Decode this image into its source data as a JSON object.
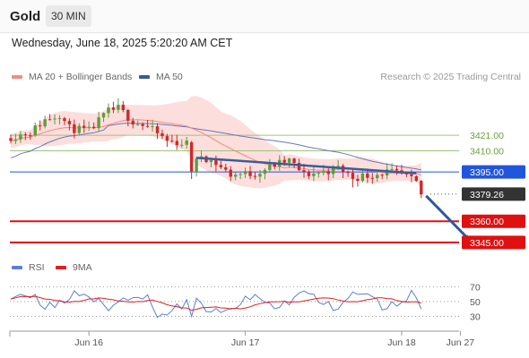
{
  "header": {
    "asset": "Gold",
    "timeframe": "30 MIN"
  },
  "timestamp": "Wednesday, June 18, 2025 5:20:20 AM CET",
  "legend": {
    "main": [
      {
        "label": "MA 20 + Bollinger Bands",
        "color": "#f28b82"
      },
      {
        "label": "MA 50",
        "color": "#3a5a98"
      }
    ],
    "rsi": [
      {
        "label": "RSI",
        "color": "#5b7fd6"
      },
      {
        "label": "9MA",
        "color": "#e02020"
      }
    ]
  },
  "copyright": "Research © 2025 Trading Central",
  "colors": {
    "up": "#5f9c3a",
    "down": "#cc2a2a",
    "bb_fill": "#fbd8d6",
    "ma20": "#f28b82",
    "ma50": "#6a78b8",
    "support": "#e01010",
    "resistance_blue": "#2255dd",
    "trendline": "#3d5b9c",
    "green_level": "#9cc57c",
    "arrow": "#2c5aa0"
  },
  "chart_data": {
    "type": "candlestick",
    "price_axis": {
      "min": 3336,
      "max": 3456
    },
    "levels": [
      {
        "value": 3421.0,
        "label": "3421.00",
        "style": "green-line",
        "tag": "plain"
      },
      {
        "value": 3410.0,
        "label": "3410.00",
        "style": "green-line",
        "tag": "plain"
      },
      {
        "value": 3395.0,
        "label": "3395.00",
        "style": "blue-line",
        "tag": "blue"
      },
      {
        "value": 3379.26,
        "label": "3379.26",
        "style": "dotted",
        "tag": "dark"
      },
      {
        "value": 3360.0,
        "label": "3360.00",
        "style": "red-line",
        "tag": "red"
      },
      {
        "value": 3345.0,
        "label": "3345.00",
        "style": "red-line",
        "tag": "red"
      }
    ],
    "trendline": {
      "from": {
        "index": 38,
        "price": 3405
      },
      "to": {
        "index": 83,
        "price": 3394
      }
    },
    "projection_arrow": {
      "from": {
        "index": 85,
        "price": 3378
      },
      "to": {
        "index": 94,
        "price": 3345
      }
    },
    "x_labels": [
      {
        "label": "Jun 16",
        "index": 16
      },
      {
        "label": "Jun 17",
        "index": 48
      },
      {
        "label": "Jun 18",
        "index": 80
      },
      {
        "label": "Jun 27",
        "index": 92
      }
    ],
    "rsi_axis": {
      "min": 15,
      "max": 80,
      "ticks": [
        70,
        50,
        30
      ]
    },
    "candles": [],
    "ma20": [],
    "ma50": [],
    "bb_upper": [],
    "bb_lower": [],
    "rsi": [],
    "rsi_ma": []
  }
}
